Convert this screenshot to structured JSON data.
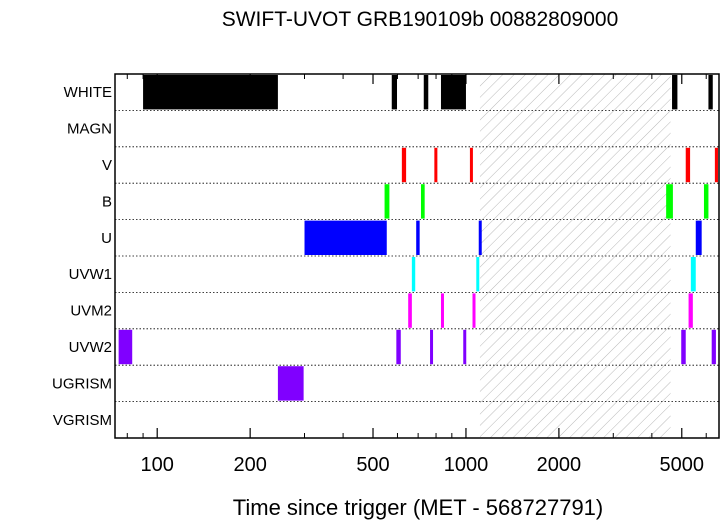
{
  "chart_data": {
    "type": "timeline",
    "title": "SWIFT-UVOT GRB190109b 00882809000",
    "xlabel": "Time since trigger (MET - 568727791)",
    "x_scale": "log",
    "xlim": [
      73,
      6600
    ],
    "x_ticks": [
      {
        "value": 100,
        "label": "100"
      },
      {
        "value": 200,
        "label": "200"
      },
      {
        "value": 500,
        "label": "500"
      },
      {
        "value": 1000,
        "label": "1000"
      },
      {
        "value": 2000,
        "label": "2000"
      },
      {
        "value": 5000,
        "label": "5000"
      }
    ],
    "grid": "dotted row separators",
    "gap_region": {
      "start": 1110,
      "end": 4600,
      "pattern": "hatched"
    },
    "filters": [
      {
        "name": "WHITE",
        "color": "#000000",
        "exposures": [
          [
            90,
            246
          ],
          [
            575,
            598
          ],
          [
            730,
            755
          ],
          [
            830,
            1000
          ],
          [
            4650,
            4840
          ],
          [
            6100,
            6300
          ]
        ]
      },
      {
        "name": "MAGN",
        "color": "#000000",
        "exposures": []
      },
      {
        "name": "V",
        "color": "#ff0000",
        "exposures": [
          [
            620,
            640
          ],
          [
            790,
            808
          ],
          [
            1030,
            1052
          ],
          [
            5150,
            5320
          ],
          [
            6400,
            6550
          ]
        ]
      },
      {
        "name": "B",
        "color": "#00ff00",
        "exposures": [
          [
            545,
            565
          ],
          [
            715,
            735
          ],
          [
            4450,
            4680
          ],
          [
            5900,
            6100
          ]
        ]
      },
      {
        "name": "U",
        "color": "#0000ff",
        "exposures": [
          [
            300,
            554
          ],
          [
            690,
            708
          ],
          [
            1100,
            1115
          ],
          [
            5550,
            5800
          ]
        ]
      },
      {
        "name": "UVW1",
        "color": "#00ffff",
        "exposures": [
          [
            668,
            685
          ],
          [
            1080,
            1100
          ],
          [
            5350,
            5550
          ]
        ]
      },
      {
        "name": "UVM2",
        "color": "#ff00ff",
        "exposures": [
          [
            650,
            668
          ],
          [
            830,
            846
          ],
          [
            1050,
            1068
          ],
          [
            5260,
            5430
          ]
        ]
      },
      {
        "name": "UVW2",
        "color": "#8000ff",
        "exposures": [
          [
            75,
            83
          ],
          [
            595,
            615
          ],
          [
            765,
            781
          ],
          [
            980,
            1000
          ],
          [
            4980,
            5150
          ],
          [
            6250,
            6450
          ]
        ]
      },
      {
        "name": "UGRISM",
        "color": "#8000ff",
        "exposures": [
          [
            246,
            298
          ]
        ]
      },
      {
        "name": "VGRISM",
        "color": "#000000",
        "exposures": []
      }
    ]
  }
}
